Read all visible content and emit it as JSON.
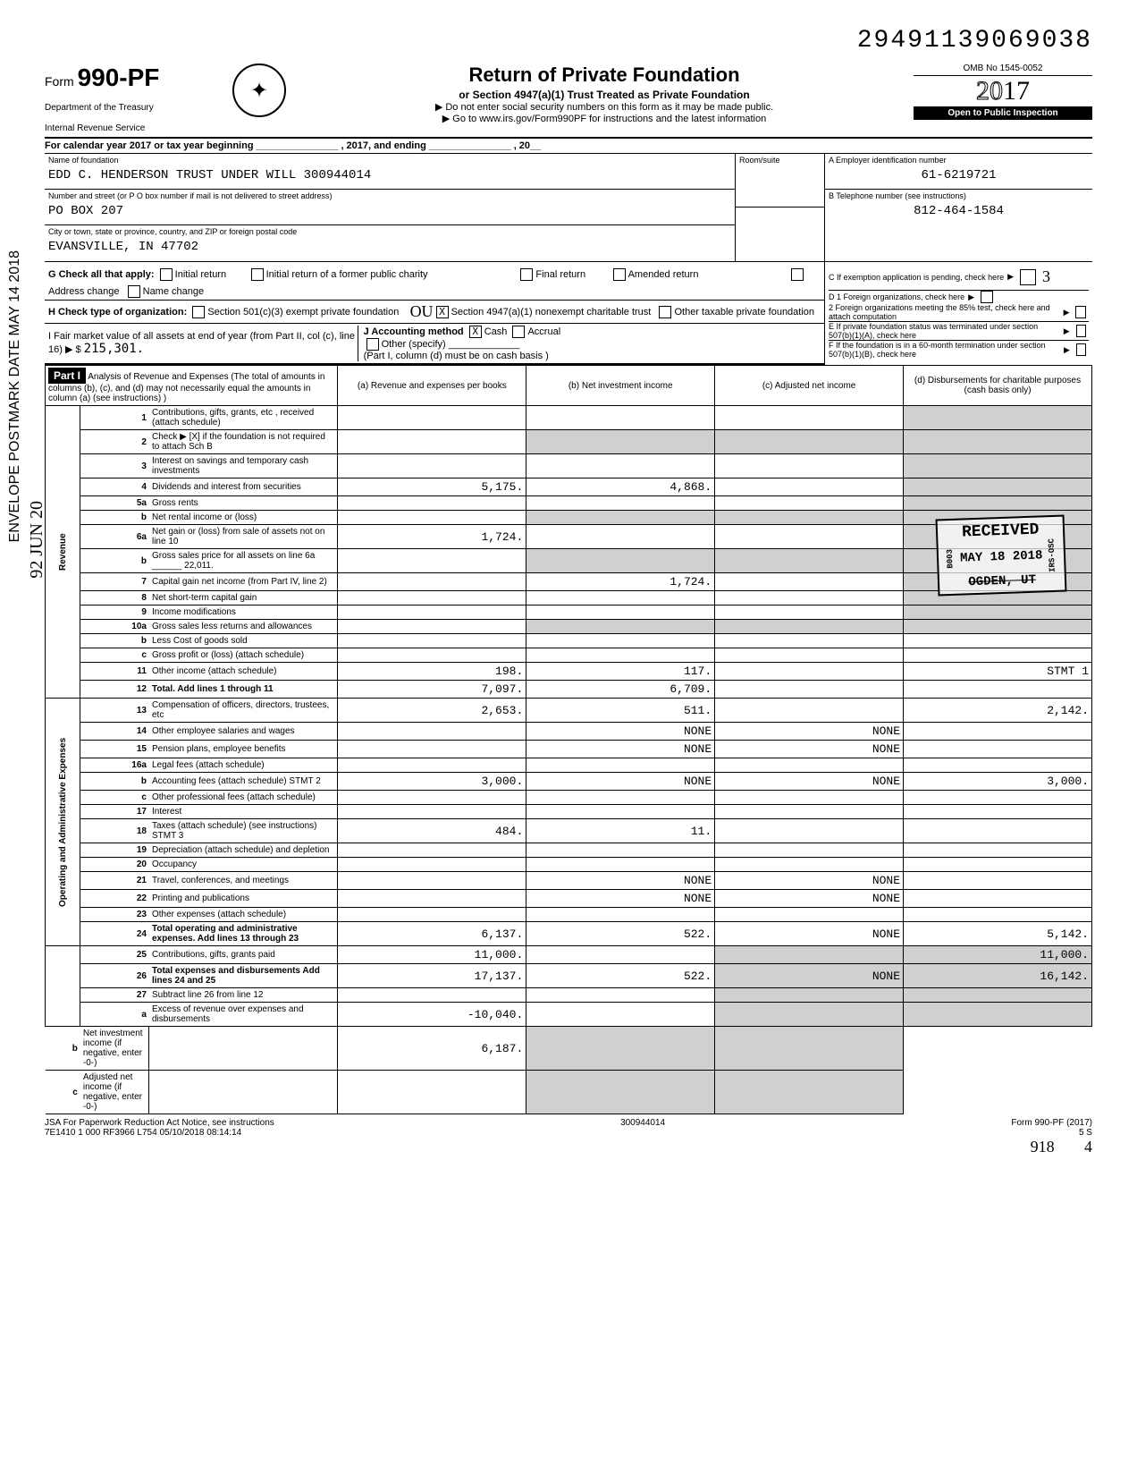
{
  "top_id": "29491139069038",
  "form": {
    "prefix": "Form",
    "number": "990-PF",
    "dept1": "Department of the Treasury",
    "dept2": "Internal Revenue Service"
  },
  "title": {
    "main": "Return of Private Foundation",
    "sub": "or Section 4947(a)(1) Trust Treated as Private Foundation",
    "warn": "Do not enter social security numbers on this form as it may be made public.",
    "goto": "Go to www.irs.gov/Form990PF for instructions and the latest information"
  },
  "rightbox": {
    "omb": "OMB No 1545-0052",
    "year_prefix": "20",
    "year_suffix": "17",
    "open": "Open to Public Inspection"
  },
  "calendar_line": {
    "prefix": "For calendar year 2017 or tax year beginning",
    "mid": ", 2017, and ending",
    "suffix": ", 20"
  },
  "name_block": {
    "lbl": "Name of foundation",
    "val": "EDD C. HENDERSON TRUST UNDER WILL 300944014",
    "addr_lbl": "Number and street (or P O box number if mail is not delivered to street address)",
    "addr_val": "PO BOX 207",
    "city_lbl": "City or town, state or province, country, and ZIP or foreign postal code",
    "city_val": "EVANSVILLE, IN 47702",
    "room_lbl": "Room/suite"
  },
  "right_col": {
    "A_lbl": "A  Employer identification number",
    "A_val": "61-6219721",
    "B_lbl": "B  Telephone number (see instructions)",
    "B_val": "812-464-1584",
    "C_lbl": "C  If exemption application is pending, check here",
    "D1": "D 1 Foreign organizations, check here",
    "D2": "2 Foreign organizations meeting the 85% test, check here and attach computation",
    "E": "E  If private foundation status was terminated under section 507(b)(1)(A), check here",
    "F": "F  If the foundation is in a 60-month termination under section 507(b)(1)(B), check here"
  },
  "G": {
    "lbl": "G Check all that apply:",
    "opts": [
      "Initial return",
      "Final return",
      "Address change",
      "Initial return of a former public charity",
      "Amended return",
      "Name change"
    ]
  },
  "H": {
    "lbl": "H Check type of organization:",
    "opt1": "Section 501(c)(3) exempt private foundation",
    "opt2": "Section 4947(a)(1) nonexempt charitable trust",
    "opt3": "Other taxable private foundation",
    "checked": "X"
  },
  "I": {
    "lbl": "I  Fair market value of all assets at end of year (from Part II, col (c), line 16) ▶ $",
    "val": "215,301."
  },
  "J": {
    "lbl": "J Accounting method",
    "opts": [
      "Cash",
      "Accrual"
    ],
    "checked": "X",
    "other": "Other (specify)",
    "note": "(Part I, column (d) must be on cash basis )"
  },
  "part1": {
    "hdr": "Part I",
    "title": "Analysis of Revenue and Expenses (The total of amounts in columns (b), (c), and (d) may not necessarily equal the amounts in column (a) (see instructions) )",
    "cols": [
      "(a) Revenue and expenses per books",
      "(b) Net investment income",
      "(c) Adjusted net income",
      "(d) Disbursements for charitable purposes (cash basis only)"
    ]
  },
  "vert": {
    "rev": "Revenue",
    "exp": "Operating and Administrative Expenses"
  },
  "rows": [
    {
      "n": "1",
      "d": "Contributions, gifts, grants, etc , received (attach schedule)",
      "a": "",
      "b": "",
      "c": "",
      "dd": ""
    },
    {
      "n": "2",
      "d": "Check ▶ [X] if the foundation is not required to attach Sch B",
      "a": "",
      "b": "",
      "c": "",
      "dd": ""
    },
    {
      "n": "3",
      "d": "Interest on savings and temporary cash investments",
      "a": "",
      "b": "",
      "c": "",
      "dd": ""
    },
    {
      "n": "4",
      "d": "Dividends and interest from securities",
      "a": "5,175.",
      "b": "4,868.",
      "c": "",
      "dd": ""
    },
    {
      "n": "5a",
      "d": "Gross rents",
      "a": "",
      "b": "",
      "c": "",
      "dd": ""
    },
    {
      "n": "b",
      "d": "Net rental income or (loss)",
      "a": "",
      "b": "",
      "c": "",
      "dd": ""
    },
    {
      "n": "6a",
      "d": "Net gain or (loss) from sale of assets not on line 10",
      "a": "1,724.",
      "b": "",
      "c": "",
      "dd": ""
    },
    {
      "n": "b",
      "d": "Gross sales price for all assets on line 6a ______ 22,011.",
      "a": "",
      "b": "",
      "c": "",
      "dd": ""
    },
    {
      "n": "7",
      "d": "Capital gain net income (from Part IV, line 2)",
      "a": "",
      "b": "1,724.",
      "c": "",
      "dd": ""
    },
    {
      "n": "8",
      "d": "Net short-term capital gain",
      "a": "",
      "b": "",
      "c": "",
      "dd": ""
    },
    {
      "n": "9",
      "d": "Income modifications",
      "a": "",
      "b": "",
      "c": "",
      "dd": ""
    },
    {
      "n": "10a",
      "d": "Gross sales less returns and allowances",
      "a": "",
      "b": "",
      "c": "",
      "dd": ""
    },
    {
      "n": "b",
      "d": "Less Cost of goods sold",
      "a": "",
      "b": "",
      "c": "",
      "dd": ""
    },
    {
      "n": "c",
      "d": "Gross profit or (loss) (attach schedule)",
      "a": "",
      "b": "",
      "c": "",
      "dd": ""
    },
    {
      "n": "11",
      "d": "Other income (attach schedule)",
      "a": "198.",
      "b": "117.",
      "c": "",
      "dd": "STMT 1"
    },
    {
      "n": "12",
      "d": "Total. Add lines 1 through 11",
      "a": "7,097.",
      "b": "6,709.",
      "c": "",
      "dd": ""
    },
    {
      "n": "13",
      "d": "Compensation of officers, directors, trustees, etc",
      "a": "2,653.",
      "b": "511.",
      "c": "",
      "dd": "2,142."
    },
    {
      "n": "14",
      "d": "Other employee salaries and wages",
      "a": "",
      "b": "NONE",
      "c": "NONE",
      "dd": ""
    },
    {
      "n": "15",
      "d": "Pension plans, employee benefits",
      "a": "",
      "b": "NONE",
      "c": "NONE",
      "dd": ""
    },
    {
      "n": "16a",
      "d": "Legal fees (attach schedule)",
      "a": "",
      "b": "",
      "c": "",
      "dd": ""
    },
    {
      "n": "b",
      "d": "Accounting fees (attach schedule) STMT 2",
      "a": "3,000.",
      "b": "NONE",
      "c": "NONE",
      "dd": "3,000."
    },
    {
      "n": "c",
      "d": "Other professional fees (attach schedule)",
      "a": "",
      "b": "",
      "c": "",
      "dd": ""
    },
    {
      "n": "17",
      "d": "Interest",
      "a": "",
      "b": "",
      "c": "",
      "dd": ""
    },
    {
      "n": "18",
      "d": "Taxes (attach schedule) (see instructions) STMT 3",
      "a": "484.",
      "b": "11.",
      "c": "",
      "dd": ""
    },
    {
      "n": "19",
      "d": "Depreciation (attach schedule) and depletion",
      "a": "",
      "b": "",
      "c": "",
      "dd": ""
    },
    {
      "n": "20",
      "d": "Occupancy",
      "a": "",
      "b": "",
      "c": "",
      "dd": ""
    },
    {
      "n": "21",
      "d": "Travel, conferences, and meetings",
      "a": "",
      "b": "NONE",
      "c": "NONE",
      "dd": ""
    },
    {
      "n": "22",
      "d": "Printing and publications",
      "a": "",
      "b": "NONE",
      "c": "NONE",
      "dd": ""
    },
    {
      "n": "23",
      "d": "Other expenses (attach schedule)",
      "a": "",
      "b": "",
      "c": "",
      "dd": ""
    },
    {
      "n": "24",
      "d": "Total operating and administrative expenses. Add lines 13 through 23",
      "a": "6,137.",
      "b": "522.",
      "c": "NONE",
      "dd": "5,142."
    },
    {
      "n": "25",
      "d": "Contributions, gifts, grants paid",
      "a": "11,000.",
      "b": "",
      "c": "",
      "dd": "11,000."
    },
    {
      "n": "26",
      "d": "Total expenses and disbursements Add lines 24 and 25",
      "a": "17,137.",
      "b": "522.",
      "c": "NONE",
      "dd": "16,142."
    },
    {
      "n": "27",
      "d": "Subtract line 26 from line 12",
      "a": "",
      "b": "",
      "c": "",
      "dd": ""
    },
    {
      "n": "a",
      "d": "Excess of revenue over expenses and disbursements",
      "a": "-10,040.",
      "b": "",
      "c": "",
      "dd": ""
    },
    {
      "n": "b",
      "d": "Net investment income (if negative, enter -0-)",
      "a": "",
      "b": "6,187.",
      "c": "",
      "dd": ""
    },
    {
      "n": "c",
      "d": "Adjusted net income (if negative, enter -0-)",
      "a": "",
      "b": "",
      "c": "",
      "dd": ""
    }
  ],
  "stamp": {
    "received": "RECEIVED",
    "date": "MAY 18 2018",
    "loc": "OGDEN, UT",
    "code1": "B003",
    "code2": "IRS-OSC"
  },
  "side": {
    "postmark": "ENVELOPE POSTMARK DATE MAY 14 2018",
    "hw": "92 JUN 20"
  },
  "footer": {
    "jsa": "JSA For Paperwork Reduction Act Notice, see instructions",
    "code": "7E1410 1 000",
    "batch": "RF3966 L754 05/10/2018 08:14:14",
    "ein": "300944014",
    "form": "Form 990-PF (2017)",
    "pg": "5        S",
    "hw1": "918",
    "hw2": "4",
    "hw3": "OU",
    "hw4": "3"
  }
}
